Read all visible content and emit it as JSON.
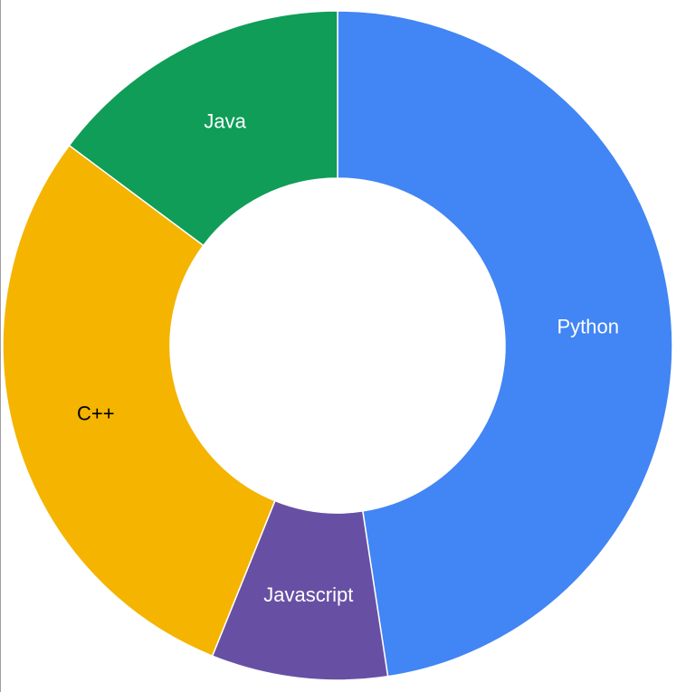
{
  "chart_data": {
    "type": "pie",
    "title": "",
    "hole": 0.5,
    "start_angle_deg": 0,
    "direction": "clockwise",
    "slices": [
      {
        "label": "Python",
        "value": 47.6,
        "color": "#4285f4",
        "label_color": "#ffffff"
      },
      {
        "label": "Javascript",
        "value": 8.5,
        "color": "#6750a4",
        "label_color": "#ffffff"
      },
      {
        "label": "C++",
        "value": 29.1,
        "color": "#f4b400",
        "label_color": "#000000"
      },
      {
        "label": "Java",
        "value": 14.8,
        "color": "#0f9d58",
        "label_color": "#ffffff"
      }
    ],
    "legend": "none"
  }
}
